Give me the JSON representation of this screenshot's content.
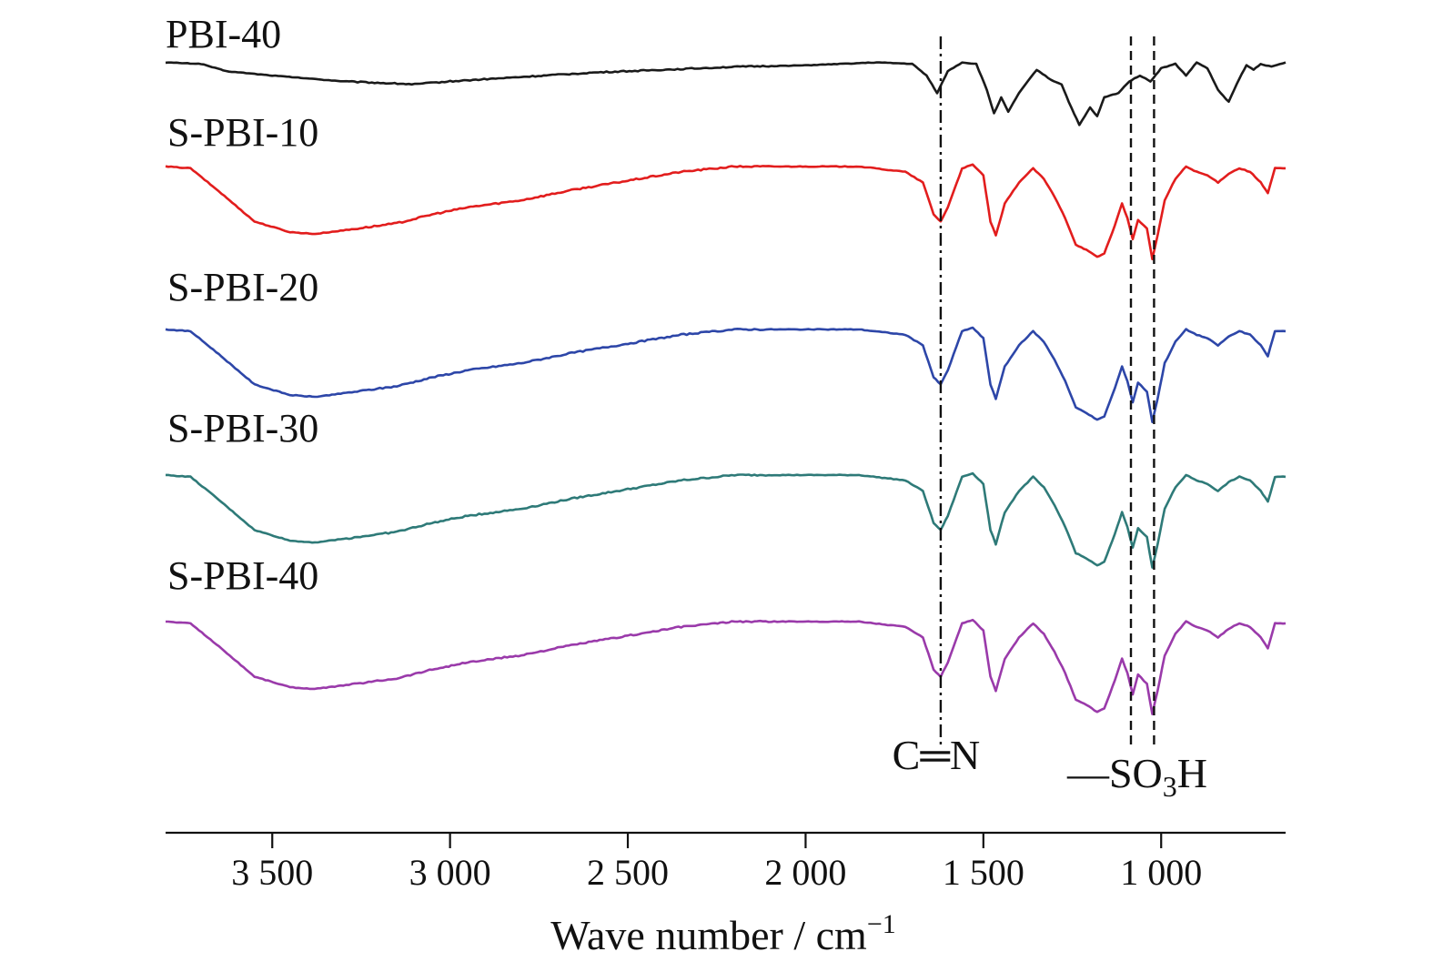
{
  "chart_data": {
    "type": "line",
    "title": "",
    "xlabel": "Wave number / cm",
    "xlabel_superscript": "−1",
    "ylabel": "",
    "xlim": [
      3800,
      650
    ],
    "x_ticks": [
      3500,
      3000,
      2500,
      2000,
      1500,
      1000
    ],
    "x_tick_labels": [
      "3 500",
      "3 000",
      "2 500",
      "2 000",
      "1 500",
      "1 000"
    ],
    "grid": false,
    "legend": "none",
    "series": [
      {
        "name": "PBI-40",
        "color": "#1a1a1a",
        "points": [
          [
            3800,
            0.99
          ],
          [
            3700,
            0.98
          ],
          [
            3630,
            0.93
          ],
          [
            3500,
            0.9
          ],
          [
            3300,
            0.86
          ],
          [
            3100,
            0.84
          ],
          [
            3000,
            0.86
          ],
          [
            2800,
            0.89
          ],
          [
            2600,
            0.92
          ],
          [
            2400,
            0.94
          ],
          [
            2200,
            0.96
          ],
          [
            2000,
            0.97
          ],
          [
            1800,
            0.99
          ],
          [
            1700,
            0.98
          ],
          [
            1660,
            0.9
          ],
          [
            1630,
            0.78
          ],
          [
            1600,
            0.93
          ],
          [
            1560,
            0.99
          ],
          [
            1520,
            0.98
          ],
          [
            1490,
            0.8
          ],
          [
            1470,
            0.64
          ],
          [
            1450,
            0.75
          ],
          [
            1430,
            0.65
          ],
          [
            1400,
            0.78
          ],
          [
            1350,
            0.94
          ],
          [
            1310,
            0.87
          ],
          [
            1280,
            0.84
          ],
          [
            1260,
            0.72
          ],
          [
            1230,
            0.56
          ],
          [
            1200,
            0.68
          ],
          [
            1180,
            0.62
          ],
          [
            1160,
            0.75
          ],
          [
            1120,
            0.78
          ],
          [
            1090,
            0.86
          ],
          [
            1060,
            0.9
          ],
          [
            1030,
            0.86
          ],
          [
            1000,
            0.95
          ],
          [
            960,
            0.98
          ],
          [
            930,
            0.9
          ],
          [
            900,
            0.99
          ],
          [
            870,
            0.95
          ],
          [
            840,
            0.8
          ],
          [
            810,
            0.72
          ],
          [
            780,
            0.88
          ],
          [
            760,
            0.97
          ],
          [
            740,
            0.94
          ],
          [
            720,
            0.98
          ],
          [
            690,
            0.96
          ],
          [
            650,
            0.99
          ]
        ],
        "label_left": 182
      },
      {
        "name": "S-PBI-10",
        "color": "#e21d1d",
        "points": [
          [
            3800,
            0.99
          ],
          [
            3730,
            0.98
          ],
          [
            3650,
            0.85
          ],
          [
            3550,
            0.68
          ],
          [
            3450,
            0.62
          ],
          [
            3380,
            0.61
          ],
          [
            3300,
            0.63
          ],
          [
            3150,
            0.67
          ],
          [
            3050,
            0.72
          ],
          [
            2950,
            0.76
          ],
          [
            2800,
            0.8
          ],
          [
            2650,
            0.86
          ],
          [
            2500,
            0.91
          ],
          [
            2350,
            0.96
          ],
          [
            2200,
            0.99
          ],
          [
            2000,
            0.99
          ],
          [
            1850,
            0.99
          ],
          [
            1720,
            0.96
          ],
          [
            1670,
            0.9
          ],
          [
            1640,
            0.72
          ],
          [
            1620,
            0.68
          ],
          [
            1600,
            0.76
          ],
          [
            1560,
            0.98
          ],
          [
            1530,
            1.0
          ],
          [
            1500,
            0.94
          ],
          [
            1480,
            0.68
          ],
          [
            1465,
            0.6
          ],
          [
            1440,
            0.78
          ],
          [
            1400,
            0.9
          ],
          [
            1360,
            0.98
          ],
          [
            1330,
            0.92
          ],
          [
            1300,
            0.82
          ],
          [
            1270,
            0.7
          ],
          [
            1240,
            0.55
          ],
          [
            1210,
            0.52
          ],
          [
            1180,
            0.48
          ],
          [
            1160,
            0.5
          ],
          [
            1130,
            0.66
          ],
          [
            1110,
            0.78
          ],
          [
            1095,
            0.7
          ],
          [
            1080,
            0.58
          ],
          [
            1065,
            0.69
          ],
          [
            1040,
            0.64
          ],
          [
            1025,
            0.47
          ],
          [
            1010,
            0.6
          ],
          [
            990,
            0.8
          ],
          [
            960,
            0.92
          ],
          [
            930,
            0.99
          ],
          [
            900,
            0.96
          ],
          [
            870,
            0.94
          ],
          [
            840,
            0.9
          ],
          [
            810,
            0.95
          ],
          [
            780,
            0.98
          ],
          [
            750,
            0.96
          ],
          [
            720,
            0.9
          ],
          [
            700,
            0.84
          ],
          [
            680,
            0.98
          ],
          [
            650,
            0.98
          ]
        ],
        "label_left": 184
      },
      {
        "name": "S-PBI-20",
        "color": "#2d46a8",
        "points": [
          [
            3800,
            0.99
          ],
          [
            3730,
            0.98
          ],
          [
            3650,
            0.85
          ],
          [
            3550,
            0.68
          ],
          [
            3450,
            0.62
          ],
          [
            3380,
            0.61
          ],
          [
            3300,
            0.63
          ],
          [
            3150,
            0.67
          ],
          [
            3050,
            0.72
          ],
          [
            2950,
            0.76
          ],
          [
            2800,
            0.8
          ],
          [
            2650,
            0.86
          ],
          [
            2500,
            0.91
          ],
          [
            2350,
            0.96
          ],
          [
            2200,
            0.99
          ],
          [
            2000,
            0.99
          ],
          [
            1850,
            0.99
          ],
          [
            1720,
            0.96
          ],
          [
            1670,
            0.9
          ],
          [
            1640,
            0.72
          ],
          [
            1620,
            0.68
          ],
          [
            1600,
            0.76
          ],
          [
            1560,
            0.98
          ],
          [
            1530,
            1.0
          ],
          [
            1500,
            0.94
          ],
          [
            1480,
            0.68
          ],
          [
            1465,
            0.6
          ],
          [
            1440,
            0.78
          ],
          [
            1400,
            0.9
          ],
          [
            1360,
            0.98
          ],
          [
            1330,
            0.92
          ],
          [
            1300,
            0.82
          ],
          [
            1270,
            0.7
          ],
          [
            1240,
            0.55
          ],
          [
            1210,
            0.52
          ],
          [
            1180,
            0.48
          ],
          [
            1160,
            0.5
          ],
          [
            1130,
            0.66
          ],
          [
            1110,
            0.78
          ],
          [
            1095,
            0.7
          ],
          [
            1080,
            0.58
          ],
          [
            1065,
            0.69
          ],
          [
            1040,
            0.64
          ],
          [
            1025,
            0.47
          ],
          [
            1010,
            0.6
          ],
          [
            990,
            0.8
          ],
          [
            960,
            0.92
          ],
          [
            930,
            0.99
          ],
          [
            900,
            0.96
          ],
          [
            870,
            0.94
          ],
          [
            840,
            0.9
          ],
          [
            810,
            0.95
          ],
          [
            780,
            0.98
          ],
          [
            750,
            0.96
          ],
          [
            720,
            0.9
          ],
          [
            700,
            0.84
          ],
          [
            680,
            0.98
          ],
          [
            650,
            0.98
          ]
        ],
        "label_left": 184
      },
      {
        "name": "S-PBI-30",
        "color": "#2e7a78",
        "points": [
          [
            3800,
            0.99
          ],
          [
            3730,
            0.98
          ],
          [
            3650,
            0.85
          ],
          [
            3550,
            0.68
          ],
          [
            3450,
            0.62
          ],
          [
            3380,
            0.61
          ],
          [
            3300,
            0.63
          ],
          [
            3150,
            0.67
          ],
          [
            3050,
            0.72
          ],
          [
            2950,
            0.76
          ],
          [
            2800,
            0.8
          ],
          [
            2650,
            0.86
          ],
          [
            2500,
            0.91
          ],
          [
            2350,
            0.96
          ],
          [
            2200,
            0.99
          ],
          [
            2000,
            0.99
          ],
          [
            1850,
            0.99
          ],
          [
            1720,
            0.96
          ],
          [
            1670,
            0.9
          ],
          [
            1640,
            0.72
          ],
          [
            1620,
            0.68
          ],
          [
            1600,
            0.76
          ],
          [
            1560,
            0.98
          ],
          [
            1530,
            1.0
          ],
          [
            1500,
            0.94
          ],
          [
            1480,
            0.68
          ],
          [
            1465,
            0.6
          ],
          [
            1440,
            0.78
          ],
          [
            1400,
            0.9
          ],
          [
            1360,
            0.98
          ],
          [
            1330,
            0.92
          ],
          [
            1300,
            0.82
          ],
          [
            1270,
            0.7
          ],
          [
            1240,
            0.55
          ],
          [
            1210,
            0.52
          ],
          [
            1180,
            0.48
          ],
          [
            1160,
            0.5
          ],
          [
            1130,
            0.66
          ],
          [
            1110,
            0.78
          ],
          [
            1095,
            0.7
          ],
          [
            1080,
            0.58
          ],
          [
            1065,
            0.69
          ],
          [
            1040,
            0.64
          ],
          [
            1025,
            0.47
          ],
          [
            1010,
            0.6
          ],
          [
            990,
            0.8
          ],
          [
            960,
            0.92
          ],
          [
            930,
            0.99
          ],
          [
            900,
            0.96
          ],
          [
            870,
            0.94
          ],
          [
            840,
            0.9
          ],
          [
            810,
            0.95
          ],
          [
            780,
            0.98
          ],
          [
            750,
            0.96
          ],
          [
            720,
            0.9
          ],
          [
            700,
            0.84
          ],
          [
            680,
            0.98
          ],
          [
            650,
            0.98
          ]
        ],
        "label_left": 184
      },
      {
        "name": "S-PBI-40",
        "color": "#9a3aaa",
        "points": [
          [
            3800,
            0.99
          ],
          [
            3730,
            0.98
          ],
          [
            3650,
            0.85
          ],
          [
            3550,
            0.68
          ],
          [
            3450,
            0.62
          ],
          [
            3380,
            0.61
          ],
          [
            3300,
            0.63
          ],
          [
            3150,
            0.67
          ],
          [
            3050,
            0.72
          ],
          [
            2950,
            0.76
          ],
          [
            2800,
            0.8
          ],
          [
            2650,
            0.86
          ],
          [
            2500,
            0.91
          ],
          [
            2350,
            0.96
          ],
          [
            2200,
            0.99
          ],
          [
            2000,
            0.99
          ],
          [
            1850,
            0.99
          ],
          [
            1720,
            0.96
          ],
          [
            1670,
            0.9
          ],
          [
            1640,
            0.72
          ],
          [
            1620,
            0.68
          ],
          [
            1600,
            0.76
          ],
          [
            1560,
            0.98
          ],
          [
            1530,
            1.0
          ],
          [
            1500,
            0.94
          ],
          [
            1480,
            0.68
          ],
          [
            1465,
            0.6
          ],
          [
            1440,
            0.78
          ],
          [
            1400,
            0.9
          ],
          [
            1360,
            0.98
          ],
          [
            1330,
            0.92
          ],
          [
            1300,
            0.82
          ],
          [
            1270,
            0.7
          ],
          [
            1240,
            0.55
          ],
          [
            1210,
            0.52
          ],
          [
            1180,
            0.48
          ],
          [
            1160,
            0.5
          ],
          [
            1130,
            0.66
          ],
          [
            1110,
            0.78
          ],
          [
            1095,
            0.7
          ],
          [
            1080,
            0.58
          ],
          [
            1065,
            0.69
          ],
          [
            1040,
            0.64
          ],
          [
            1025,
            0.47
          ],
          [
            1010,
            0.6
          ],
          [
            990,
            0.8
          ],
          [
            960,
            0.92
          ],
          [
            930,
            0.99
          ],
          [
            900,
            0.96
          ],
          [
            870,
            0.94
          ],
          [
            840,
            0.9
          ],
          [
            810,
            0.95
          ],
          [
            780,
            0.98
          ],
          [
            750,
            0.96
          ],
          [
            720,
            0.9
          ],
          [
            700,
            0.84
          ],
          [
            680,
            0.98
          ],
          [
            650,
            0.98
          ]
        ],
        "label_left": 184
      }
    ],
    "annotations": [
      {
        "name": "C=N",
        "text": "C═N",
        "x": 1620,
        "style": "dash-dot"
      },
      {
        "name": "SO3H-a",
        "text": "",
        "x": 1085,
        "style": "dashed"
      },
      {
        "name": "SO3H-b",
        "text": "—SO",
        "subscript": "3",
        "suffix": "H",
        "x": 1020,
        "style": "dashed"
      }
    ]
  }
}
